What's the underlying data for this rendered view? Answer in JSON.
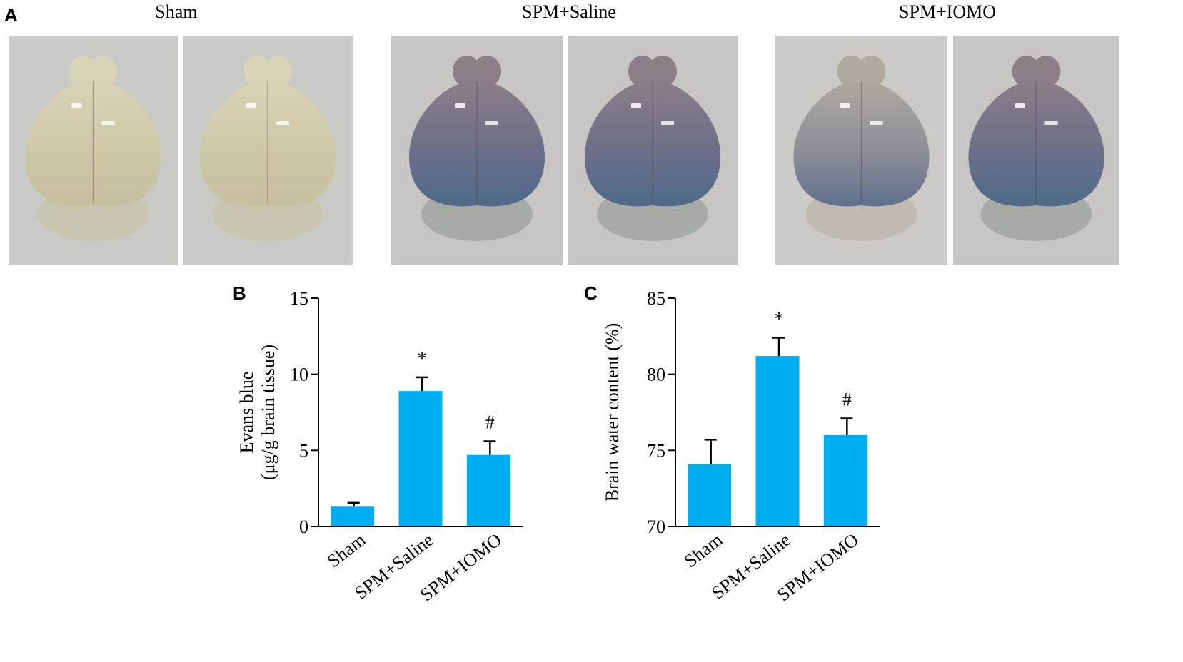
{
  "panels": {
    "a": {
      "letter": "A"
    },
    "b": {
      "letter": "B"
    },
    "c": {
      "letter": "C"
    }
  },
  "groups": [
    "Sham",
    "SPM+Saline",
    "SPM+IOMO"
  ],
  "photos": [
    {
      "group": "Sham",
      "stain": "none"
    },
    {
      "group": "Sham",
      "stain": "none"
    },
    {
      "group": "SPM+Saline",
      "stain": "blue"
    },
    {
      "group": "SPM+Saline",
      "stain": "blue"
    },
    {
      "group": "SPM+IOMO",
      "stain": "light-blue"
    },
    {
      "group": "SPM+IOMO",
      "stain": "blue"
    }
  ],
  "colors": {
    "bar": "#00adef",
    "axis": "#000000"
  },
  "chart_data": [
    {
      "type": "bar",
      "panel": "B",
      "categories": [
        "Sham",
        "SPM+Saline",
        "SPM+IOMO"
      ],
      "values": [
        1.3,
        8.9,
        4.7
      ],
      "errors": [
        0.25,
        0.9,
        0.9
      ],
      "annotations": [
        "",
        "*",
        "#"
      ],
      "ylabel_lines": [
        "Evans blue",
        "(μg/g brain tissue)"
      ],
      "xlabel": "",
      "ylim": [
        0,
        15
      ],
      "yticks": [
        "0",
        "5",
        "10",
        "15"
      ],
      "ytick_values": [
        0,
        5,
        10,
        15
      ],
      "grid": false
    },
    {
      "type": "bar",
      "panel": "C",
      "categories": [
        "Sham",
        "SPM+Saline",
        "SPM+IOMO"
      ],
      "values": [
        74.1,
        81.2,
        76.0
      ],
      "errors": [
        1.6,
        1.2,
        1.1
      ],
      "annotations": [
        "",
        "*",
        "#"
      ],
      "ylabel_lines": [
        "Brain water content (%)"
      ],
      "xlabel": "",
      "ylim": [
        70,
        85
      ],
      "yticks": [
        "70",
        "75",
        "80",
        "85"
      ],
      "ytick_values": [
        70,
        75,
        80,
        85
      ],
      "grid": false
    }
  ]
}
